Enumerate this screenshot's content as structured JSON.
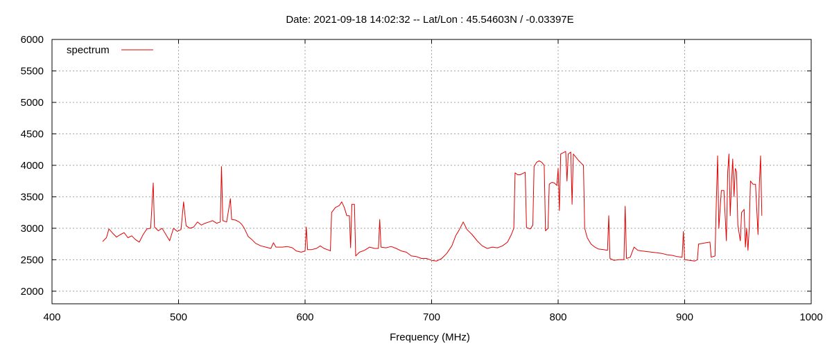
{
  "chart_data": {
    "type": "line",
    "title": "Date: 2021-09-18 14:02:32  --  Lat/Lon : 45.54603N / -0.03397E",
    "xlabel": "Frequency (MHz)",
    "ylabel": "",
    "xlim": [
      400,
      1000
    ],
    "ylim": [
      1800,
      6000
    ],
    "x_ticks": [
      400,
      500,
      600,
      700,
      800,
      900,
      1000
    ],
    "y_ticks": [
      2000,
      2500,
      3000,
      3500,
      4000,
      4500,
      5000,
      5500,
      6000
    ],
    "grid": true,
    "legend_position": "top-left",
    "series": [
      {
        "name": "spectrum",
        "color": "#e00000",
        "points": [
          [
            440,
            2790
          ],
          [
            443,
            2850
          ],
          [
            445,
            2990
          ],
          [
            448,
            2920
          ],
          [
            451,
            2860
          ],
          [
            454,
            2900
          ],
          [
            457,
            2930
          ],
          [
            460,
            2850
          ],
          [
            463,
            2880
          ],
          [
            466,
            2820
          ],
          [
            469,
            2780
          ],
          [
            472,
            2900
          ],
          [
            475,
            2990
          ],
          [
            478,
            3000
          ],
          [
            480,
            3720
          ],
          [
            481,
            3020
          ],
          [
            484,
            2960
          ],
          [
            487,
            3000
          ],
          [
            490,
            2900
          ],
          [
            493,
            2800
          ],
          [
            496,
            3000
          ],
          [
            499,
            2950
          ],
          [
            502,
            2980
          ],
          [
            504,
            3420
          ],
          [
            506,
            3040
          ],
          [
            509,
            3000
          ],
          [
            512,
            3020
          ],
          [
            515,
            3100
          ],
          [
            518,
            3050
          ],
          [
            521,
            3080
          ],
          [
            524,
            3100
          ],
          [
            527,
            3120
          ],
          [
            530,
            3080
          ],
          [
            533,
            3100
          ],
          [
            534,
            3980
          ],
          [
            535,
            3120
          ],
          [
            538,
            3100
          ],
          [
            541,
            3470
          ],
          [
            542,
            3140
          ],
          [
            545,
            3130
          ],
          [
            548,
            3100
          ],
          [
            550,
            3060
          ],
          [
            552,
            3000
          ],
          [
            555,
            2870
          ],
          [
            558,
            2820
          ],
          [
            561,
            2760
          ],
          [
            565,
            2720
          ],
          [
            569,
            2700
          ],
          [
            573,
            2680
          ],
          [
            575,
            2770
          ],
          [
            577,
            2700
          ],
          [
            582,
            2700
          ],
          [
            586,
            2710
          ],
          [
            590,
            2690
          ],
          [
            593,
            2640
          ],
          [
            597,
            2620
          ],
          [
            600,
            2640
          ],
          [
            601,
            3020
          ],
          [
            602,
            2660
          ],
          [
            605,
            2660
          ],
          [
            609,
            2680
          ],
          [
            612,
            2720
          ],
          [
            615,
            2680
          ],
          [
            619,
            2650
          ],
          [
            620,
            2640
          ],
          [
            621,
            3250
          ],
          [
            624,
            3330
          ],
          [
            627,
            3360
          ],
          [
            629,
            3420
          ],
          [
            631,
            3330
          ],
          [
            633,
            3200
          ],
          [
            635,
            3200
          ],
          [
            636,
            2690
          ],
          [
            637,
            3380
          ],
          [
            639,
            3380
          ],
          [
            640,
            2560
          ],
          [
            643,
            2620
          ],
          [
            647,
            2650
          ],
          [
            651,
            2700
          ],
          [
            655,
            2680
          ],
          [
            658,
            2680
          ],
          [
            659,
            3140
          ],
          [
            660,
            2700
          ],
          [
            664,
            2690
          ],
          [
            668,
            2710
          ],
          [
            672,
            2680
          ],
          [
            676,
            2640
          ],
          [
            680,
            2620
          ],
          [
            684,
            2560
          ],
          [
            688,
            2550
          ],
          [
            692,
            2520
          ],
          [
            696,
            2520
          ],
          [
            700,
            2490
          ],
          [
            704,
            2480
          ],
          [
            708,
            2520
          ],
          [
            712,
            2600
          ],
          [
            716,
            2720
          ],
          [
            719,
            2880
          ],
          [
            722,
            2980
          ],
          [
            725,
            3100
          ],
          [
            728,
            2980
          ],
          [
            732,
            2900
          ],
          [
            736,
            2800
          ],
          [
            740,
            2720
          ],
          [
            744,
            2680
          ],
          [
            748,
            2700
          ],
          [
            752,
            2690
          ],
          [
            756,
            2720
          ],
          [
            760,
            2780
          ],
          [
            763,
            2900
          ],
          [
            765,
            3000
          ],
          [
            766,
            3880
          ],
          [
            768,
            3850
          ],
          [
            770,
            3850
          ],
          [
            772,
            3870
          ],
          [
            774,
            3890
          ],
          [
            775,
            3010
          ],
          [
            778,
            2990
          ],
          [
            780,
            3050
          ],
          [
            781,
            3980
          ],
          [
            783,
            4050
          ],
          [
            785,
            4070
          ],
          [
            787,
            4050
          ],
          [
            789,
            4000
          ],
          [
            790,
            2960
          ],
          [
            792,
            3000
          ],
          [
            793,
            3700
          ],
          [
            795,
            3730
          ],
          [
            797,
            3720
          ],
          [
            799,
            3680
          ],
          [
            800,
            3950
          ],
          [
            801,
            3280
          ],
          [
            802,
            4180
          ],
          [
            804,
            4200
          ],
          [
            806,
            4220
          ],
          [
            807,
            3750
          ],
          [
            808,
            4180
          ],
          [
            810,
            4210
          ],
          [
            811,
            3380
          ],
          [
            812,
            4180
          ],
          [
            814,
            4130
          ],
          [
            816,
            4080
          ],
          [
            818,
            4040
          ],
          [
            820,
            4000
          ],
          [
            821,
            3000
          ],
          [
            823,
            2850
          ],
          [
            826,
            2750
          ],
          [
            829,
            2700
          ],
          [
            832,
            2670
          ],
          [
            836,
            2660
          ],
          [
            839,
            2650
          ],
          [
            840,
            3200
          ],
          [
            841,
            2520
          ],
          [
            844,
            2490
          ],
          [
            848,
            2500
          ],
          [
            852,
            2500
          ],
          [
            853,
            3350
          ],
          [
            854,
            2520
          ],
          [
            857,
            2540
          ],
          [
            860,
            2700
          ],
          [
            863,
            2650
          ],
          [
            866,
            2640
          ],
          [
            870,
            2630
          ],
          [
            874,
            2620
          ],
          [
            878,
            2610
          ],
          [
            882,
            2600
          ],
          [
            886,
            2580
          ],
          [
            890,
            2570
          ],
          [
            894,
            2550
          ],
          [
            898,
            2540
          ],
          [
            899,
            2950
          ],
          [
            900,
            2500
          ],
          [
            904,
            2490
          ],
          [
            908,
            2480
          ],
          [
            910,
            2500
          ],
          [
            911,
            2750
          ],
          [
            914,
            2760
          ],
          [
            917,
            2770
          ],
          [
            920,
            2780
          ],
          [
            921,
            2540
          ],
          [
            924,
            2560
          ],
          [
            925,
            3400
          ],
          [
            926,
            4150
          ],
          [
            927,
            3000
          ],
          [
            929,
            3600
          ],
          [
            931,
            3600
          ],
          [
            933,
            2800
          ],
          [
            934,
            3900
          ],
          [
            935,
            4180
          ],
          [
            936,
            3200
          ],
          [
            937,
            3700
          ],
          [
            938,
            4100
          ],
          [
            939,
            3500
          ],
          [
            940,
            3950
          ],
          [
            941,
            3900
          ],
          [
            942,
            3050
          ],
          [
            944,
            2800
          ],
          [
            945,
            3250
          ],
          [
            947,
            3300
          ],
          [
            948,
            2700
          ],
          [
            949,
            3000
          ],
          [
            950,
            2650
          ],
          [
            951,
            3000
          ],
          [
            952,
            3750
          ],
          [
            954,
            3700
          ],
          [
            956,
            3700
          ],
          [
            958,
            2900
          ],
          [
            959,
            3700
          ],
          [
            960,
            4150
          ],
          [
            961,
            3200
          ]
        ]
      }
    ]
  }
}
